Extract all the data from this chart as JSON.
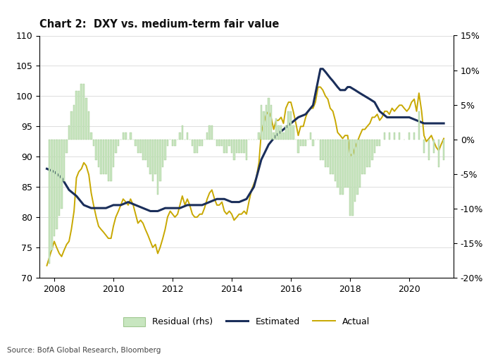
{
  "title": "Chart 2:  DXY vs. medium-term fair value",
  "source": "Source: BofA Global Research, Bloomberg",
  "xlim": [
    2007.5,
    2021.5
  ],
  "ylim_left": [
    70,
    110
  ],
  "ylim_right": [
    -0.2,
    0.15
  ],
  "yticks_left": [
    70,
    75,
    80,
    85,
    90,
    95,
    100,
    105,
    110
  ],
  "yticks_right": [
    -0.2,
    -0.15,
    -0.1,
    -0.05,
    0.0,
    0.05,
    0.1,
    0.15
  ],
  "xticks": [
    2008,
    2010,
    2012,
    2014,
    2016,
    2018,
    2020
  ],
  "color_estimated": "#1a2e5a",
  "color_actual": "#c8a800",
  "color_residual_fill": "#c8e6c0",
  "color_residual_edge": "#a0c890",
  "legend_labels": [
    "Residual (rhs)",
    "Estimated",
    "Actual"
  ],
  "background_color": "#ffffff",
  "grid_color": "#d0d0d0",
  "actual": [
    [
      2007.75,
      72.0
    ],
    [
      2008.0,
      76.0
    ],
    [
      2008.08,
      75.0
    ],
    [
      2008.17,
      74.0
    ],
    [
      2008.25,
      73.5
    ],
    [
      2008.33,
      74.5
    ],
    [
      2008.42,
      75.5
    ],
    [
      2008.5,
      76.0
    ],
    [
      2008.58,
      78.0
    ],
    [
      2008.67,
      81.0
    ],
    [
      2008.75,
      86.5
    ],
    [
      2008.83,
      87.5
    ],
    [
      2008.92,
      88.0
    ],
    [
      2009.0,
      89.0
    ],
    [
      2009.08,
      88.5
    ],
    [
      2009.17,
      87.0
    ],
    [
      2009.25,
      84.0
    ],
    [
      2009.33,
      82.0
    ],
    [
      2009.42,
      80.0
    ],
    [
      2009.5,
      78.5
    ],
    [
      2009.58,
      78.0
    ],
    [
      2009.67,
      77.5
    ],
    [
      2009.75,
      77.0
    ],
    [
      2009.83,
      76.5
    ],
    [
      2009.92,
      76.5
    ],
    [
      2010.0,
      78.5
    ],
    [
      2010.08,
      80.0
    ],
    [
      2010.17,
      81.0
    ],
    [
      2010.25,
      82.0
    ],
    [
      2010.33,
      83.0
    ],
    [
      2010.42,
      82.5
    ],
    [
      2010.5,
      82.0
    ],
    [
      2010.58,
      83.0
    ],
    [
      2010.67,
      82.0
    ],
    [
      2010.75,
      80.5
    ],
    [
      2010.83,
      79.0
    ],
    [
      2010.92,
      79.5
    ],
    [
      2011.0,
      79.0
    ],
    [
      2011.08,
      78.0
    ],
    [
      2011.17,
      77.0
    ],
    [
      2011.25,
      76.0
    ],
    [
      2011.33,
      75.0
    ],
    [
      2011.42,
      75.5
    ],
    [
      2011.5,
      74.0
    ],
    [
      2011.58,
      75.0
    ],
    [
      2011.67,
      76.5
    ],
    [
      2011.75,
      78.0
    ],
    [
      2011.83,
      80.0
    ],
    [
      2011.92,
      81.0
    ],
    [
      2012.0,
      80.5
    ],
    [
      2012.08,
      80.0
    ],
    [
      2012.17,
      80.5
    ],
    [
      2012.25,
      82.0
    ],
    [
      2012.33,
      83.5
    ],
    [
      2012.42,
      82.0
    ],
    [
      2012.5,
      83.0
    ],
    [
      2012.58,
      82.0
    ],
    [
      2012.67,
      80.5
    ],
    [
      2012.75,
      80.0
    ],
    [
      2012.83,
      80.0
    ],
    [
      2012.92,
      80.5
    ],
    [
      2013.0,
      80.5
    ],
    [
      2013.08,
      81.5
    ],
    [
      2013.17,
      83.0
    ],
    [
      2013.25,
      84.0
    ],
    [
      2013.33,
      84.5
    ],
    [
      2013.42,
      83.0
    ],
    [
      2013.5,
      82.0
    ],
    [
      2013.58,
      82.0
    ],
    [
      2013.67,
      82.5
    ],
    [
      2013.75,
      81.0
    ],
    [
      2013.83,
      80.5
    ],
    [
      2013.92,
      81.0
    ],
    [
      2014.0,
      80.5
    ],
    [
      2014.08,
      79.5
    ],
    [
      2014.17,
      80.0
    ],
    [
      2014.25,
      80.5
    ],
    [
      2014.33,
      80.5
    ],
    [
      2014.42,
      81.0
    ],
    [
      2014.5,
      80.5
    ],
    [
      2014.58,
      82.5
    ],
    [
      2014.67,
      84.5
    ],
    [
      2014.75,
      85.5
    ],
    [
      2014.83,
      86.5
    ],
    [
      2014.92,
      89.0
    ],
    [
      2015.0,
      94.0
    ],
    [
      2015.08,
      95.5
    ],
    [
      2015.17,
      97.0
    ],
    [
      2015.25,
      97.5
    ],
    [
      2015.33,
      96.5
    ],
    [
      2015.42,
      94.5
    ],
    [
      2015.5,
      96.0
    ],
    [
      2015.58,
      96.0
    ],
    [
      2015.67,
      96.5
    ],
    [
      2015.75,
      95.5
    ],
    [
      2015.83,
      98.0
    ],
    [
      2015.92,
      99.0
    ],
    [
      2016.0,
      99.0
    ],
    [
      2016.08,
      97.5
    ],
    [
      2016.17,
      95.5
    ],
    [
      2016.25,
      93.5
    ],
    [
      2016.33,
      95.0
    ],
    [
      2016.42,
      95.0
    ],
    [
      2016.5,
      96.5
    ],
    [
      2016.58,
      97.5
    ],
    [
      2016.67,
      98.0
    ],
    [
      2016.75,
      98.0
    ],
    [
      2016.83,
      99.0
    ],
    [
      2016.92,
      101.5
    ],
    [
      2017.0,
      101.5
    ],
    [
      2017.08,
      101.0
    ],
    [
      2017.17,
      100.0
    ],
    [
      2017.25,
      99.5
    ],
    [
      2017.33,
      98.0
    ],
    [
      2017.42,
      97.5
    ],
    [
      2017.5,
      96.0
    ],
    [
      2017.58,
      94.0
    ],
    [
      2017.67,
      93.5
    ],
    [
      2017.75,
      93.0
    ],
    [
      2017.83,
      93.5
    ],
    [
      2017.92,
      93.5
    ],
    [
      2018.0,
      90.5
    ],
    [
      2018.08,
      90.0
    ],
    [
      2018.17,
      91.5
    ],
    [
      2018.25,
      92.5
    ],
    [
      2018.33,
      93.5
    ],
    [
      2018.42,
      94.5
    ],
    [
      2018.5,
      94.5
    ],
    [
      2018.58,
      95.0
    ],
    [
      2018.67,
      95.5
    ],
    [
      2018.75,
      96.5
    ],
    [
      2018.83,
      96.5
    ],
    [
      2018.92,
      97.0
    ],
    [
      2019.0,
      96.0
    ],
    [
      2019.08,
      96.5
    ],
    [
      2019.17,
      97.5
    ],
    [
      2019.25,
      97.5
    ],
    [
      2019.33,
      97.0
    ],
    [
      2019.42,
      98.0
    ],
    [
      2019.5,
      97.5
    ],
    [
      2019.58,
      98.0
    ],
    [
      2019.67,
      98.5
    ],
    [
      2019.75,
      98.5
    ],
    [
      2019.83,
      98.0
    ],
    [
      2019.92,
      97.5
    ],
    [
      2020.0,
      98.0
    ],
    [
      2020.08,
      99.0
    ],
    [
      2020.17,
      99.5
    ],
    [
      2020.25,
      97.5
    ],
    [
      2020.33,
      100.5
    ],
    [
      2020.42,
      97.5
    ],
    [
      2020.5,
      93.5
    ],
    [
      2020.58,
      92.5
    ],
    [
      2020.67,
      93.0
    ],
    [
      2020.75,
      93.5
    ],
    [
      2020.83,
      92.5
    ],
    [
      2020.92,
      91.5
    ],
    [
      2021.0,
      91.0
    ],
    [
      2021.08,
      92.0
    ],
    [
      2021.17,
      93.0
    ]
  ],
  "estimated": [
    [
      2007.75,
      88.0
    ],
    [
      2008.0,
      87.5
    ],
    [
      2008.25,
      86.5
    ],
    [
      2008.5,
      84.5
    ],
    [
      2008.75,
      83.5
    ],
    [
      2009.0,
      82.0
    ],
    [
      2009.25,
      81.5
    ],
    [
      2009.5,
      81.5
    ],
    [
      2009.75,
      81.5
    ],
    [
      2010.0,
      82.0
    ],
    [
      2010.25,
      82.0
    ],
    [
      2010.5,
      82.5
    ],
    [
      2010.75,
      82.0
    ],
    [
      2011.0,
      81.5
    ],
    [
      2011.25,
      81.0
    ],
    [
      2011.5,
      81.0
    ],
    [
      2011.75,
      81.5
    ],
    [
      2012.0,
      81.5
    ],
    [
      2012.25,
      81.5
    ],
    [
      2012.5,
      82.0
    ],
    [
      2012.75,
      82.0
    ],
    [
      2013.0,
      82.0
    ],
    [
      2013.25,
      82.5
    ],
    [
      2013.5,
      83.0
    ],
    [
      2013.75,
      83.0
    ],
    [
      2014.0,
      82.5
    ],
    [
      2014.25,
      82.5
    ],
    [
      2014.5,
      83.0
    ],
    [
      2014.75,
      85.0
    ],
    [
      2015.0,
      89.5
    ],
    [
      2015.25,
      92.0
    ],
    [
      2015.5,
      93.5
    ],
    [
      2015.75,
      94.5
    ],
    [
      2016.0,
      95.5
    ],
    [
      2016.25,
      96.5
    ],
    [
      2016.5,
      97.0
    ],
    [
      2016.75,
      98.5
    ],
    [
      2017.0,
      104.5
    ],
    [
      2017.08,
      104.5
    ],
    [
      2017.17,
      104.0
    ],
    [
      2017.25,
      103.5
    ],
    [
      2017.33,
      103.0
    ],
    [
      2017.42,
      102.5
    ],
    [
      2017.5,
      102.0
    ],
    [
      2017.58,
      101.5
    ],
    [
      2017.67,
      101.0
    ],
    [
      2017.75,
      101.0
    ],
    [
      2017.83,
      101.0
    ],
    [
      2017.92,
      101.5
    ],
    [
      2018.0,
      101.5
    ],
    [
      2018.17,
      101.0
    ],
    [
      2018.33,
      100.5
    ],
    [
      2018.5,
      100.0
    ],
    [
      2018.67,
      99.5
    ],
    [
      2018.83,
      99.0
    ],
    [
      2019.0,
      97.5
    ],
    [
      2019.25,
      96.5
    ],
    [
      2019.5,
      96.5
    ],
    [
      2019.75,
      96.5
    ],
    [
      2020.0,
      96.5
    ],
    [
      2020.25,
      96.0
    ],
    [
      2020.5,
      95.5
    ],
    [
      2020.75,
      95.5
    ],
    [
      2021.0,
      95.5
    ],
    [
      2021.17,
      95.5
    ]
  ],
  "residual": [
    [
      2007.83,
      -0.18
    ],
    [
      2007.92,
      -0.16
    ],
    [
      2008.0,
      -0.14
    ],
    [
      2008.08,
      -0.13
    ],
    [
      2008.17,
      -0.11
    ],
    [
      2008.25,
      -0.1
    ],
    [
      2008.33,
      -0.06
    ],
    [
      2008.42,
      -0.02
    ],
    [
      2008.5,
      0.02
    ],
    [
      2008.58,
      0.04
    ],
    [
      2008.67,
      0.05
    ],
    [
      2008.75,
      0.07
    ],
    [
      2008.83,
      0.07
    ],
    [
      2008.92,
      0.08
    ],
    [
      2009.0,
      0.08
    ],
    [
      2009.08,
      0.06
    ],
    [
      2009.17,
      0.04
    ],
    [
      2009.25,
      0.01
    ],
    [
      2009.33,
      -0.01
    ],
    [
      2009.42,
      -0.03
    ],
    [
      2009.5,
      -0.04
    ],
    [
      2009.58,
      -0.05
    ],
    [
      2009.67,
      -0.05
    ],
    [
      2009.75,
      -0.05
    ],
    [
      2009.83,
      -0.06
    ],
    [
      2009.92,
      -0.06
    ],
    [
      2010.0,
      -0.04
    ],
    [
      2010.08,
      -0.02
    ],
    [
      2010.17,
      -0.01
    ],
    [
      2010.25,
      0.0
    ],
    [
      2010.33,
      0.01
    ],
    [
      2010.42,
      0.01
    ],
    [
      2010.5,
      0.0
    ],
    [
      2010.58,
      0.01
    ],
    [
      2010.67,
      0.0
    ],
    [
      2010.75,
      -0.01
    ],
    [
      2010.83,
      -0.02
    ],
    [
      2010.92,
      -0.02
    ],
    [
      2011.0,
      -0.03
    ],
    [
      2011.08,
      -0.03
    ],
    [
      2011.17,
      -0.04
    ],
    [
      2011.25,
      -0.05
    ],
    [
      2011.33,
      -0.06
    ],
    [
      2011.42,
      -0.05
    ],
    [
      2011.5,
      -0.08
    ],
    [
      2011.58,
      -0.06
    ],
    [
      2011.67,
      -0.04
    ],
    [
      2011.75,
      -0.03
    ],
    [
      2011.83,
      -0.01
    ],
    [
      2011.92,
      0.0
    ],
    [
      2012.0,
      -0.01
    ],
    [
      2012.08,
      -0.01
    ],
    [
      2012.17,
      0.0
    ],
    [
      2012.25,
      0.01
    ],
    [
      2012.33,
      0.02
    ],
    [
      2012.42,
      0.0
    ],
    [
      2012.5,
      0.01
    ],
    [
      2012.58,
      0.0
    ],
    [
      2012.67,
      -0.01
    ],
    [
      2012.75,
      -0.02
    ],
    [
      2012.83,
      -0.02
    ],
    [
      2012.92,
      -0.01
    ],
    [
      2013.0,
      -0.01
    ],
    [
      2013.08,
      0.0
    ],
    [
      2013.17,
      0.01
    ],
    [
      2013.25,
      0.02
    ],
    [
      2013.33,
      0.02
    ],
    [
      2013.42,
      0.0
    ],
    [
      2013.5,
      -0.01
    ],
    [
      2013.58,
      -0.01
    ],
    [
      2013.67,
      -0.01
    ],
    [
      2013.75,
      -0.02
    ],
    [
      2013.83,
      -0.02
    ],
    [
      2013.92,
      -0.01
    ],
    [
      2014.0,
      -0.02
    ],
    [
      2014.08,
      -0.03
    ],
    [
      2014.17,
      -0.02
    ],
    [
      2014.25,
      -0.02
    ],
    [
      2014.33,
      -0.02
    ],
    [
      2014.42,
      -0.02
    ],
    [
      2014.5,
      -0.03
    ],
    [
      2014.58,
      0.0
    ],
    [
      2014.67,
      0.0
    ],
    [
      2014.75,
      0.0
    ],
    [
      2014.83,
      0.0
    ],
    [
      2014.92,
      0.01
    ],
    [
      2015.0,
      0.05
    ],
    [
      2015.08,
      0.04
    ],
    [
      2015.17,
      0.05
    ],
    [
      2015.25,
      0.06
    ],
    [
      2015.33,
      0.05
    ],
    [
      2015.42,
      0.01
    ],
    [
      2015.5,
      0.03
    ],
    [
      2015.58,
      0.02
    ],
    [
      2015.67,
      0.02
    ],
    [
      2015.75,
      0.01
    ],
    [
      2015.83,
      0.02
    ],
    [
      2015.92,
      0.04
    ],
    [
      2016.0,
      0.04
    ],
    [
      2016.08,
      0.02
    ],
    [
      2016.17,
      0.0
    ],
    [
      2016.25,
      -0.02
    ],
    [
      2016.33,
      -0.01
    ],
    [
      2016.42,
      -0.01
    ],
    [
      2016.5,
      -0.01
    ],
    [
      2016.58,
      0.0
    ],
    [
      2016.67,
      0.01
    ],
    [
      2016.75,
      -0.01
    ],
    [
      2016.83,
      0.0
    ],
    [
      2016.92,
      0.0
    ],
    [
      2017.0,
      -0.03
    ],
    [
      2017.08,
      -0.03
    ],
    [
      2017.17,
      -0.04
    ],
    [
      2017.25,
      -0.04
    ],
    [
      2017.33,
      -0.05
    ],
    [
      2017.42,
      -0.05
    ],
    [
      2017.5,
      -0.06
    ],
    [
      2017.58,
      -0.07
    ],
    [
      2017.67,
      -0.08
    ],
    [
      2017.75,
      -0.08
    ],
    [
      2017.83,
      -0.07
    ],
    [
      2017.92,
      -0.07
    ],
    [
      2018.0,
      -0.11
    ],
    [
      2018.08,
      -0.11
    ],
    [
      2018.17,
      -0.09
    ],
    [
      2018.25,
      -0.08
    ],
    [
      2018.33,
      -0.07
    ],
    [
      2018.42,
      -0.05
    ],
    [
      2018.5,
      -0.05
    ],
    [
      2018.58,
      -0.04
    ],
    [
      2018.67,
      -0.04
    ],
    [
      2018.75,
      -0.03
    ],
    [
      2018.83,
      -0.02
    ],
    [
      2018.92,
      -0.01
    ],
    [
      2019.0,
      -0.01
    ],
    [
      2019.17,
      0.01
    ],
    [
      2019.33,
      0.01
    ],
    [
      2019.5,
      0.01
    ],
    [
      2019.67,
      0.01
    ],
    [
      2019.83,
      0.0
    ],
    [
      2020.0,
      0.01
    ],
    [
      2020.17,
      0.01
    ],
    [
      2020.33,
      0.04
    ],
    [
      2020.5,
      -0.02
    ],
    [
      2020.67,
      -0.03
    ],
    [
      2020.83,
      -0.02
    ],
    [
      2021.0,
      -0.04
    ],
    [
      2021.17,
      -0.03
    ]
  ]
}
